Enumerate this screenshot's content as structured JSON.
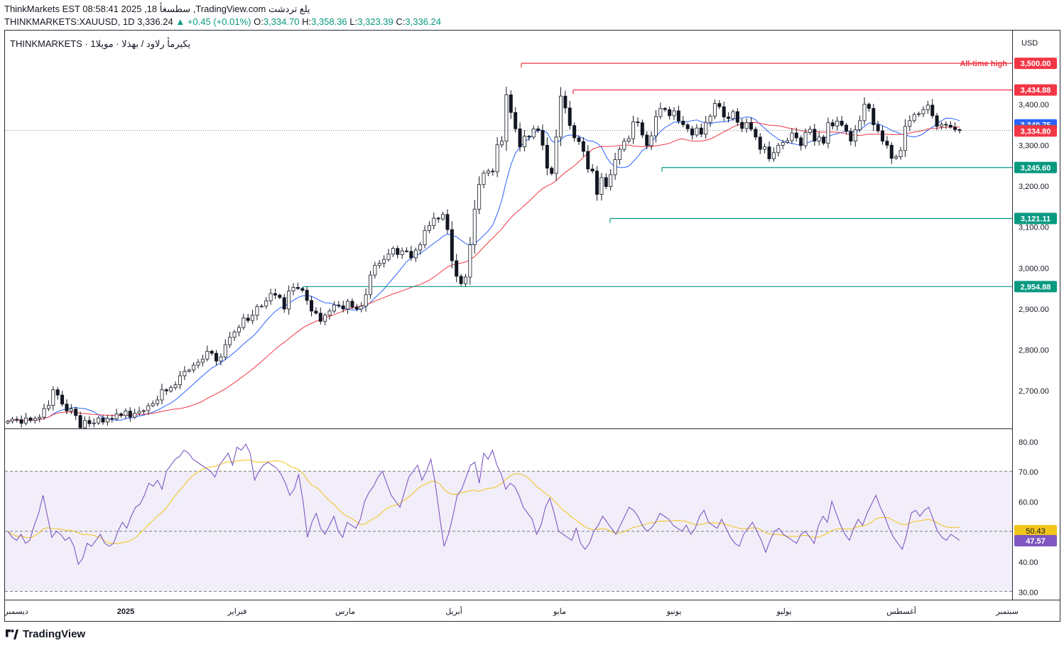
{
  "header": {
    "line1": "ThinkMarkets EST 08:58:41 2025 ,18 سطسغأ ,TradingView.com يلع تردشت",
    "symbol": "THINKMARKETS:XAUUSD, 1D",
    "last": "3,336.24",
    "change": "+0.45 (+0.01%)",
    "open_label": "O:",
    "open": "3,334.70",
    "high_label": "H:",
    "high": "3,358.36",
    "low_label": "L:",
    "low": "3,323.39",
    "close_label": "C:",
    "close": "3,336.24"
  },
  "main_title": "THINKMARKETS · يكيرمأ رلاود / بهذلا · مويلا1",
  "currency": "USD",
  "footer_logo": "TradingView",
  "chart_data": [
    {
      "type": "candlestick",
      "title": "",
      "price_axis_ticks": [
        "3,400.00",
        "3,300.00",
        "3,200.00",
        "3,100.00",
        "3,000.00",
        "2,900.00",
        "2,800.00",
        "2,700.00"
      ],
      "price_range": [
        2605,
        3580
      ],
      "x_labels": [
        "ديسمبر",
        "2025",
        "فبراير",
        "مارس",
        "أبريل",
        "مايو",
        "يونيو",
        "يوليو",
        "أغسطس",
        "سبتمبر"
      ],
      "close_series": [
        2626,
        2631,
        2630,
        2621,
        2634,
        2628,
        2633,
        2636,
        2657,
        2665,
        2703,
        2690,
        2668,
        2651,
        2656,
        2640,
        2610,
        2628,
        2620,
        2622,
        2634,
        2624,
        2633,
        2632,
        2644,
        2640,
        2651,
        2636,
        2646,
        2650,
        2652,
        2664,
        2669,
        2678,
        2703,
        2700,
        2708,
        2715,
        2737,
        2748,
        2751,
        2763,
        2770,
        2778,
        2797,
        2792,
        2773,
        2783,
        2813,
        2831,
        2844,
        2855,
        2878,
        2872,
        2885,
        2906,
        2907,
        2920,
        2938,
        2934,
        2928,
        2900,
        2944,
        2953,
        2950,
        2946,
        2921,
        2895,
        2890,
        2870,
        2885,
        2895,
        2910,
        2908,
        2900,
        2919,
        2905,
        2900,
        2907,
        2935,
        2983,
        3007,
        3012,
        3021,
        3034,
        3048,
        3033,
        3042,
        3041,
        3025,
        3044,
        3057,
        3092,
        3104,
        3122,
        3120,
        3131,
        3094,
        3018,
        2980,
        2962,
        2978,
        3057,
        3144,
        3204,
        3232,
        3237,
        3235,
        3301,
        3310,
        3423,
        3380,
        3340,
        3296,
        3322,
        3320,
        3340,
        3336,
        3300,
        3244,
        3231,
        3320,
        3420,
        3391,
        3348,
        3318,
        3309,
        3285,
        3242,
        3237,
        3180,
        3221,
        3199,
        3228,
        3265,
        3290,
        3310,
        3316,
        3357,
        3355,
        3325,
        3299,
        3323,
        3370,
        3390,
        3387,
        3372,
        3384,
        3359,
        3350,
        3340,
        3325,
        3342,
        3327,
        3356,
        3371,
        3402,
        3394,
        3369,
        3365,
        3382,
        3356,
        3341,
        3355,
        3339,
        3320,
        3290,
        3296,
        3267,
        3282,
        3300,
        3307,
        3311,
        3330,
        3318,
        3299,
        3331,
        3339,
        3310,
        3320,
        3305,
        3355,
        3347,
        3359,
        3349,
        3334,
        3310,
        3338,
        3360,
        3400,
        3390,
        3350,
        3335,
        3310,
        3300,
        3268,
        3272,
        3287,
        3346,
        3360,
        3375,
        3377,
        3387,
        3398,
        3372,
        3346,
        3351,
        3349,
        3344,
        3338,
        3336
      ],
      "ma_fast_color": "#2962ff",
      "ma_slow_color": "#f23645",
      "levels": [
        {
          "label": "3,500.00",
          "value": 3500,
          "color": "#f23645",
          "note": "All-time high"
        },
        {
          "label": "3,434.88",
          "value": 3434.88,
          "color": "#f23645"
        },
        {
          "label": "3,245.60",
          "value": 3245.6,
          "color": "#089981"
        },
        {
          "label": "3,121.11",
          "value": 3121.11,
          "color": "#089981"
        },
        {
          "label": "2,954.88",
          "value": 2954.88,
          "color": "#089981"
        }
      ],
      "price_tags": [
        {
          "label": "3,349.75",
          "value": 3349.75,
          "color": "#2962ff"
        },
        {
          "label": "3,336.24",
          "value": 3336.24,
          "color": "#6a6d78"
        },
        {
          "label": "3,334.80",
          "value": 3334.8,
          "color": "#f23645"
        }
      ]
    },
    {
      "type": "line",
      "title": "",
      "indicator": "RSI",
      "y_range": [
        27,
        84
      ],
      "y_ticks": [
        "80.00",
        "70.00",
        "60.00",
        "50.00",
        "40.00",
        "30.00"
      ],
      "bands": [
        30,
        50,
        70
      ],
      "rsi_color": "#7e57c2",
      "signal_color": "#f0c419",
      "rsi_value": "47.57",
      "signal_value": "50.43",
      "rsi_values": [
        50,
        48,
        47,
        49,
        46,
        47,
        52,
        56,
        62,
        55,
        48,
        50,
        49,
        47,
        48,
        45,
        39,
        41,
        46,
        45,
        47,
        49,
        46,
        45,
        46,
        50,
        53,
        51,
        55,
        58,
        59,
        62,
        66,
        65,
        67,
        64,
        70,
        72,
        74,
        75,
        77,
        76,
        74,
        73,
        72,
        71,
        70,
        68,
        72,
        74,
        76,
        72,
        78,
        77,
        79,
        76,
        67,
        70,
        72,
        73,
        72,
        71,
        69,
        66,
        62,
        64,
        69,
        60,
        48,
        53,
        56,
        51,
        49,
        52,
        55,
        50,
        48,
        53,
        52,
        51,
        54,
        60,
        63,
        65,
        68,
        70,
        66,
        62,
        60,
        58,
        63,
        68,
        70,
        72,
        67,
        70,
        74,
        66,
        55,
        45,
        49,
        55,
        62,
        64,
        68,
        72,
        73,
        66,
        76,
        74,
        77,
        72,
        69,
        64,
        66,
        65,
        62,
        58,
        56,
        54,
        49,
        52,
        58,
        61,
        56,
        50,
        49,
        48,
        47,
        51,
        46,
        44,
        46,
        50,
        52,
        55,
        53,
        51,
        49,
        52,
        55,
        58,
        57,
        55,
        52,
        50,
        51,
        53,
        56,
        55,
        54,
        52,
        51,
        50,
        52,
        49,
        51,
        55,
        57,
        53,
        52,
        51,
        54,
        51,
        48,
        46,
        45,
        49,
        51,
        53,
        50,
        47,
        43,
        47,
        50,
        51,
        49,
        48,
        47,
        46,
        49,
        50,
        48,
        46,
        52,
        55,
        53,
        60,
        56,
        52,
        49,
        47,
        51,
        54,
        52,
        56,
        59,
        62,
        58,
        55,
        51,
        48,
        46,
        44,
        49,
        56,
        57,
        55,
        57,
        58,
        54,
        50,
        48,
        47,
        49,
        48,
        47
      ]
    }
  ]
}
